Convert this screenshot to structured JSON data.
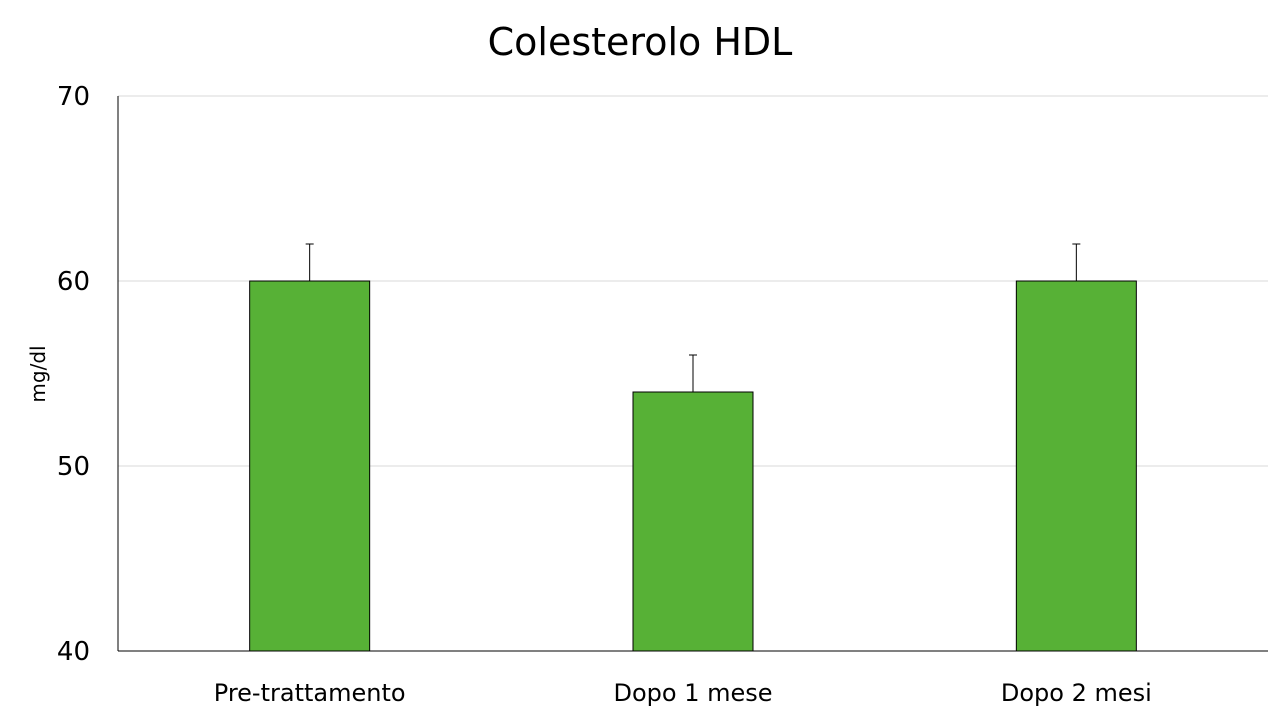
{
  "chart_data": {
    "type": "bar",
    "title": "Colesterolo HDL",
    "ylabel": "mg/dl",
    "xlabel": "",
    "categories": [
      "Pre-trattamento",
      "Dopo 1 mese",
      "Dopo 2 mesi"
    ],
    "values": [
      60,
      54,
      60
    ],
    "error_upper": [
      62,
      56,
      62
    ],
    "ylim": [
      40,
      70
    ],
    "yticks": [
      40,
      50,
      60,
      70
    ],
    "ytick_labels": [
      "40",
      "50",
      "60",
      "70"
    ],
    "grid": true,
    "legend": "none",
    "bar_color": "#57b136"
  }
}
